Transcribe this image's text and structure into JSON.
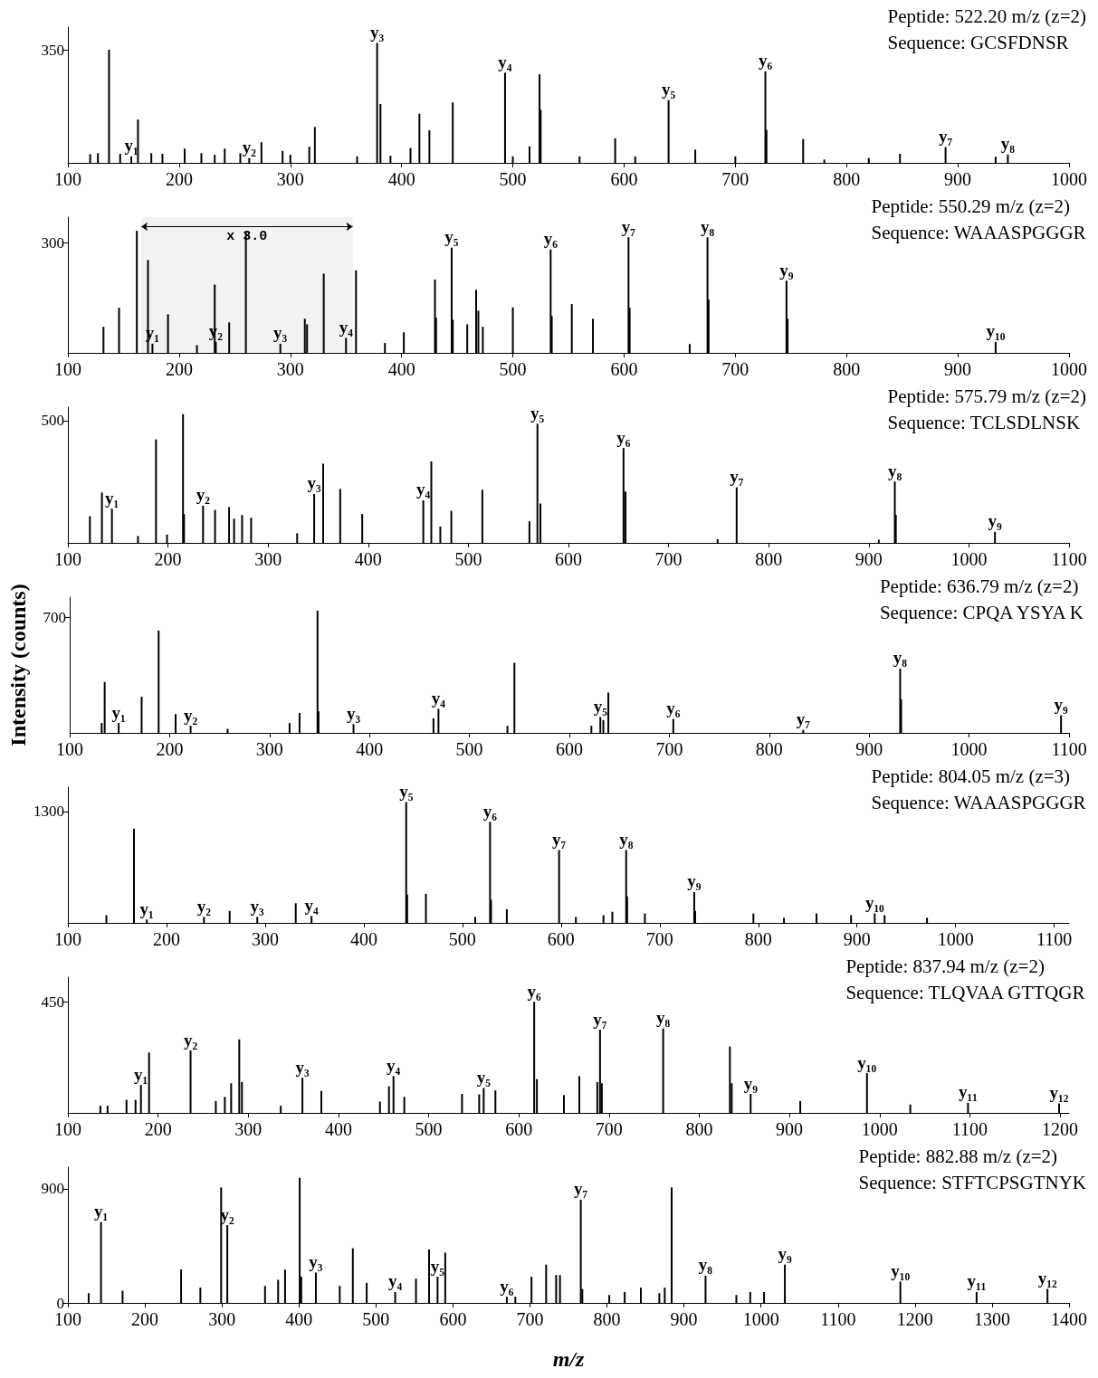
{
  "chart_data": [
    {
      "type": "bar",
      "title": "Peptide: 522.20 m/z (z=2)",
      "subtitle": "Sequence: GCSFDNSR",
      "color": "#000000",
      "x": [
        120,
        127,
        137,
        147,
        157,
        163,
        175,
        185,
        205,
        220,
        232,
        241,
        255,
        263,
        274,
        293,
        300,
        317,
        322,
        360,
        378,
        381,
        390,
        408,
        416,
        425,
        446,
        493,
        500,
        515,
        524,
        525,
        560,
        592,
        610,
        640,
        664,
        700,
        727,
        728,
        761,
        780,
        820,
        848,
        889,
        934,
        945
      ],
      "values": [
        27,
        30,
        350,
        28,
        20,
        134,
        30,
        28,
        44,
        30,
        25,
        44,
        30,
        15,
        64,
        37,
        25,
        50,
        111,
        20,
        371,
        182,
        22,
        46,
        152,
        101,
        187,
        279,
        20,
        51,
        274,
        164,
        20,
        76,
        20,
        194,
        41,
        20,
        283,
        102,
        74,
        10,
        15,
        28,
        49,
        19,
        26
      ],
      "xlim": [
        100,
        1000
      ],
      "xticks": [
        100,
        200,
        300,
        400,
        500,
        600,
        700,
        800,
        900,
        1000
      ],
      "ylim": [
        0,
        420
      ],
      "yticks": [
        350
      ],
      "annotations": [
        {
          "text": "y₁",
          "x": 157,
          "y": 20
        },
        {
          "text": "y₂",
          "x": 263,
          "y": 15
        },
        {
          "text": "y₃",
          "x": 378,
          "y": 371
        },
        {
          "text": "y₄",
          "x": 493,
          "y": 279
        },
        {
          "text": "y₅",
          "x": 640,
          "y": 194
        },
        {
          "text": "y₆",
          "x": 727,
          "y": 283
        },
        {
          "text": "y₇",
          "x": 889,
          "y": 49
        },
        {
          "text": "y₈",
          "x": 945,
          "y": 26
        }
      ]
    },
    {
      "type": "bar",
      "title": "Peptide: 550.29 m/z (z=2)",
      "subtitle": "Sequence: WAAASPGGGR",
      "color": "#000000",
      "x": [
        132,
        146,
        162,
        172,
        176,
        190,
        216,
        232,
        233,
        245,
        260,
        291,
        313,
        315,
        330,
        350,
        359,
        385,
        402,
        430,
        431,
        445,
        446,
        459,
        467,
        469,
        473,
        500,
        534,
        535,
        553,
        572,
        604,
        605,
        659,
        675,
        676,
        746,
        747,
        934
      ],
      "values": [
        71,
        123,
        333,
        253,
        25,
        105,
        21,
        186,
        30,
        83,
        330,
        25,
        93,
        78,
        216,
        41,
        225,
        27,
        56,
        200,
        96,
        287,
        90,
        78,
        172,
        115,
        71,
        124,
        282,
        100,
        133,
        93,
        315,
        123,
        24,
        315,
        145,
        197,
        93,
        30
      ],
      "xlim": [
        100,
        1000
      ],
      "xticks": [
        100,
        200,
        300,
        400,
        500,
        600,
        700,
        800,
        900,
        1000
      ],
      "ylim": [
        0,
        370
      ],
      "yticks": [
        300
      ],
      "bands": [
        {
          "axis": "x",
          "from": 166,
          "to": 356,
          "label": "x 3.0"
        }
      ],
      "annotations": [
        {
          "text": "y₁",
          "x": 176,
          "y": 25
        },
        {
          "text": "y₂",
          "x": 233,
          "y": 30
        },
        {
          "text": "y₃",
          "x": 291,
          "y": 25
        },
        {
          "text": "y₄",
          "x": 350,
          "y": 41
        },
        {
          "text": "y₅",
          "x": 445,
          "y": 287
        },
        {
          "text": "y₆",
          "x": 534,
          "y": 282
        },
        {
          "text": "y₇",
          "x": 604,
          "y": 315
        },
        {
          "text": "y₈",
          "x": 675,
          "y": 315
        },
        {
          "text": "y₉",
          "x": 746,
          "y": 197
        },
        {
          "text": "y₁₀",
          "x": 934,
          "y": 30
        }
      ]
    },
    {
      "type": "bar",
      "title": "Peptide: 575.79 m/z (z=2)",
      "subtitle": "Sequence: TCLSDLNSK",
      "color": "#000000",
      "x": [
        122,
        134,
        144,
        170,
        188,
        199,
        215,
        216,
        235,
        247,
        261,
        266,
        274,
        283,
        329,
        346,
        355,
        372,
        394,
        455,
        463,
        472,
        483,
        514,
        561,
        569,
        572,
        655,
        657,
        749,
        768,
        910,
        926,
        927,
        1026
      ],
      "values": [
        109,
        206,
        140,
        28,
        423,
        34,
        526,
        118,
        152,
        135,
        146,
        99,
        114,
        103,
        39,
        200,
        324,
        221,
        118,
        174,
        333,
        67,
        131,
        217,
        88,
        487,
        161,
        388,
        210,
        15,
        227,
        13,
        251,
        114,
        45
      ],
      "xlim": [
        100,
        1100
      ],
      "xticks": [
        100,
        200,
        300,
        400,
        500,
        600,
        700,
        800,
        900,
        1000,
        1100
      ],
      "ylim": [
        0,
        555
      ],
      "yticks": [
        500
      ],
      "annotations": [
        {
          "text": "y₁",
          "x": 144,
          "y": 140
        },
        {
          "text": "y₂",
          "x": 235,
          "y": 152
        },
        {
          "text": "y₃",
          "x": 346,
          "y": 200
        },
        {
          "text": "y₄",
          "x": 455,
          "y": 174
        },
        {
          "text": "y₅",
          "x": 569,
          "y": 487
        },
        {
          "text": "y₆",
          "x": 655,
          "y": 388
        },
        {
          "text": "y₇",
          "x": 768,
          "y": 227
        },
        {
          "text": "y₈",
          "x": 926,
          "y": 251
        },
        {
          "text": "y₉",
          "x": 1026,
          "y": 45
        }
      ]
    },
    {
      "type": "bar",
      "title": "Peptide: 636.79 m/z (z=2)",
      "subtitle": "Sequence: CPQA YSYA K",
      "color": "#000000",
      "ylabel": "Intensity (counts)",
      "x": [
        132,
        135,
        149,
        172,
        189,
        206,
        221,
        258,
        320,
        330,
        348,
        349,
        384,
        464,
        469,
        538,
        545,
        622,
        631,
        634,
        639,
        704,
        834,
        931,
        932,
        1092
      ],
      "values": [
        60,
        309,
        60,
        220,
        622,
        114,
        43,
        25,
        60,
        121,
        743,
        131,
        53,
        89,
        146,
        43,
        426,
        43,
        96,
        78,
        245,
        85,
        18,
        391,
        203,
        107
      ],
      "xlim": [
        100,
        1100
      ],
      "xticks": [
        100,
        200,
        300,
        400,
        500,
        600,
        700,
        800,
        900,
        1000,
        1100
      ],
      "ylim": [
        0,
        825
      ],
      "yticks": [
        700
      ],
      "annotations": [
        {
          "text": "y₁",
          "x": 149,
          "y": 60
        },
        {
          "text": "y₂",
          "x": 221,
          "y": 43
        },
        {
          "text": "y₃",
          "x": 384,
          "y": 53
        },
        {
          "text": "y₄",
          "x": 469,
          "y": 146
        },
        {
          "text": "y₅",
          "x": 631,
          "y": 96
        },
        {
          "text": "y₆",
          "x": 704,
          "y": 85
        },
        {
          "text": "y₇",
          "x": 834,
          "y": 18
        },
        {
          "text": "y₈",
          "x": 931,
          "y": 391
        },
        {
          "text": "y₉",
          "x": 1092,
          "y": 107
        }
      ]
    },
    {
      "type": "bar",
      "title": "Peptide: 804.05 m/z (z=3)",
      "subtitle": "Sequence: WAAASPGGGR",
      "color": "#000000",
      "x": [
        139,
        167,
        180,
        238,
        264,
        292,
        331,
        347,
        443,
        444,
        463,
        513,
        528,
        529,
        545,
        598,
        615,
        643,
        652,
        666,
        667,
        685,
        735,
        736,
        795,
        826,
        859,
        894,
        918,
        928,
        971
      ],
      "values": [
        90,
        1100,
        40,
        70,
        140,
        70,
        230,
        80,
        1410,
        330,
        340,
        70,
        1180,
        270,
        160,
        850,
        70,
        90,
        130,
        850,
        310,
        110,
        360,
        140,
        110,
        60,
        110,
        90,
        110,
        90,
        60
      ],
      "xlim": [
        100,
        1115
      ],
      "xticks": [
        100,
        200,
        300,
        400,
        500,
        600,
        700,
        800,
        900,
        1000,
        1100
      ],
      "ylim": [
        0,
        1585
      ],
      "yticks": [
        1300
      ],
      "annotations": [
        {
          "text": "y₁",
          "x": 180,
          "y": 40
        },
        {
          "text": "y₂",
          "x": 238,
          "y": 70
        },
        {
          "text": "y₃",
          "x": 292,
          "y": 70
        },
        {
          "text": "y₄",
          "x": 347,
          "y": 80
        },
        {
          "text": "y₅",
          "x": 443,
          "y": 1410
        },
        {
          "text": "y₆",
          "x": 528,
          "y": 1180
        },
        {
          "text": "y₇",
          "x": 598,
          "y": 850
        },
        {
          "text": "y₈",
          "x": 666,
          "y": 850
        },
        {
          "text": "y₉",
          "x": 735,
          "y": 360
        },
        {
          "text": "y₁₀",
          "x": 918,
          "y": 110
        }
      ]
    },
    {
      "type": "bar",
      "title": "Peptide: 837.94 m/z (z=2)",
      "subtitle": "Sequence: TLQVAA GTTQGR",
      "color": "#000000",
      "x": [
        136,
        144,
        165,
        175,
        181,
        190,
        236,
        264,
        274,
        281,
        290,
        293,
        336,
        360,
        381,
        446,
        456,
        461,
        473,
        537,
        556,
        561,
        574,
        617,
        620,
        650,
        667,
        687,
        690,
        692,
        760,
        834,
        836,
        857,
        912,
        986,
        1034,
        1098,
        1199
      ],
      "values": [
        29,
        29,
        53,
        53,
        113,
        245,
        253,
        48,
        65,
        120,
        298,
        125,
        29,
        142,
        89,
        46,
        108,
        149,
        65,
        77,
        75,
        101,
        91,
        450,
        137,
        72,
        149,
        125,
        337,
        120,
        342,
        269,
        120,
        77,
        48,
        161,
        34,
        41,
        38
      ],
      "xlim": [
        100,
        1210
      ],
      "xticks": [
        100,
        200,
        300,
        400,
        500,
        600,
        700,
        800,
        900,
        1000,
        1100,
        1200
      ],
      "ylim": [
        0,
        550
      ],
      "yticks": [
        450
      ],
      "annotations": [
        {
          "text": "y₁",
          "x": 181,
          "y": 113
        },
        {
          "text": "y₂",
          "x": 236,
          "y": 253
        },
        {
          "text": "y₃",
          "x": 360,
          "y": 142
        },
        {
          "text": "y₄",
          "x": 461,
          "y": 149
        },
        {
          "text": "y₅",
          "x": 561,
          "y": 101
        },
        {
          "text": "y₆",
          "x": 617,
          "y": 450
        },
        {
          "text": "y₇",
          "x": 690,
          "y": 337
        },
        {
          "text": "y₈",
          "x": 760,
          "y": 342
        },
        {
          "text": "y₉",
          "x": 857,
          "y": 77
        },
        {
          "text": "y₁₀",
          "x": 986,
          "y": 161
        },
        {
          "text": "y₁₁",
          "x": 1098,
          "y": 41
        },
        {
          "text": "y₁₂",
          "x": 1199,
          "y": 38
        }
      ]
    },
    {
      "type": "bar",
      "title": "Peptide: 882.88 m/z (z=2)",
      "subtitle": "Sequence: STFTCPSGTNYK",
      "color": "#000000",
      "xlabel": "m/z",
      "x": [
        127,
        143,
        171,
        247,
        272,
        299,
        307,
        356,
        373,
        382,
        401,
        403,
        422,
        453,
        470,
        488,
        525,
        552,
        569,
        580,
        590,
        670,
        681,
        702,
        721,
        734,
        739,
        766,
        768,
        803,
        823,
        844,
        868,
        875,
        884,
        928,
        968,
        986,
        1004,
        1031,
        1181,
        1280,
        1372
      ],
      "values": [
        77,
        637,
        96,
        263,
        120,
        910,
        613,
        134,
        182,
        263,
        986,
        206,
        239,
        134,
        431,
        158,
        86,
        191,
        421,
        206,
        397,
        48,
        48,
        206,
        302,
        220,
        220,
        814,
        110,
        62,
        86,
        120,
        77,
        120,
        910,
        215,
        62,
        86,
        86,
        302,
        168,
        86,
        110
      ],
      "xlim": [
        100,
        1400
      ],
      "xticks": [
        100,
        200,
        300,
        400,
        500,
        600,
        700,
        800,
        900,
        1000,
        1100,
        1200,
        1300,
        1400
      ],
      "ylim": [
        0,
        1070
      ],
      "yticks": [
        0,
        900
      ],
      "annotations": [
        {
          "text": "y₁",
          "x": 143,
          "y": 637
        },
        {
          "text": "y₂",
          "x": 307,
          "y": 613
        },
        {
          "text": "y₃",
          "x": 422,
          "y": 239
        },
        {
          "text": "y₄",
          "x": 525,
          "y": 86
        },
        {
          "text": "y₅",
          "x": 580,
          "y": 206
        },
        {
          "text": "y₆",
          "x": 670,
          "y": 48
        },
        {
          "text": "y₇",
          "x": 766,
          "y": 814
        },
        {
          "text": "y₈",
          "x": 928,
          "y": 215
        },
        {
          "text": "y₉",
          "x": 1031,
          "y": 302
        },
        {
          "text": "y₁₀",
          "x": 1181,
          "y": 168
        },
        {
          "text": "y₁₁",
          "x": 1280,
          "y": 86
        },
        {
          "text": "y₁₂",
          "x": 1372,
          "y": 110
        }
      ]
    }
  ]
}
